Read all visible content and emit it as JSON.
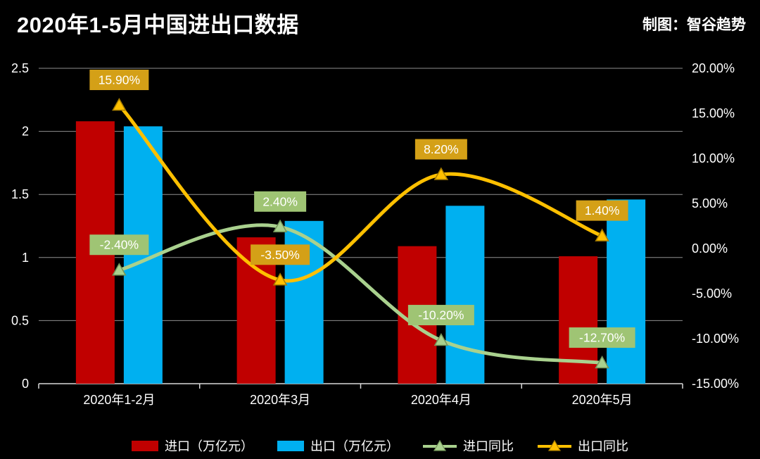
{
  "header": {
    "title": "2020年1-5月中国进出口数据",
    "credit": "制图：智谷趋势"
  },
  "chart_data": {
    "type": "bar",
    "subtype": "combo-bar-line-dual-axis",
    "title": "2020年1-5月中国进出口数据",
    "categories": [
      "2020年1-2月",
      "2020年3月",
      "2020年4月",
      "2020年5月"
    ],
    "bar_series": [
      {
        "name": "进口（万亿元）",
        "color": "#c00000",
        "axis": "left",
        "values": [
          2.08,
          1.16,
          1.09,
          1.01
        ]
      },
      {
        "name": "出口（万亿元）",
        "color": "#00b0f0",
        "axis": "left",
        "values": [
          2.04,
          1.29,
          1.41,
          1.46
        ]
      }
    ],
    "line_series": [
      {
        "name": "进口同比",
        "color": "#a9d18e",
        "label_bg": "#9fc474",
        "marker_stroke": "#74975a",
        "axis": "right",
        "values": [
          -2.4,
          2.4,
          -10.2,
          -12.7
        ],
        "labels": [
          "-2.40%",
          "2.40%",
          "-10.20%",
          "-12.70%"
        ]
      },
      {
        "name": "出口同比",
        "color": "#ffc000",
        "label_bg": "#d4a017",
        "marker_stroke": "#a87e00",
        "axis": "right",
        "values": [
          15.9,
          -3.5,
          8.2,
          1.4
        ],
        "labels": [
          "15.90%",
          "-3.50%",
          "8.20%",
          "1.40%"
        ]
      }
    ],
    "left_axis": {
      "min": 0,
      "max": 2.5,
      "ticks": [
        "0",
        "0.5",
        "1",
        "1.5",
        "2",
        "2.5"
      ]
    },
    "right_axis": {
      "min": -15,
      "max": 20,
      "ticks": [
        "-15.00%",
        "-10.00%",
        "-5.00%",
        "0.00%",
        "5.00%",
        "10.00%",
        "15.00%",
        "20.00%"
      ]
    },
    "grid": true,
    "legend_position": "bottom",
    "background": "#000000",
    "text_color": "#ffffff"
  }
}
